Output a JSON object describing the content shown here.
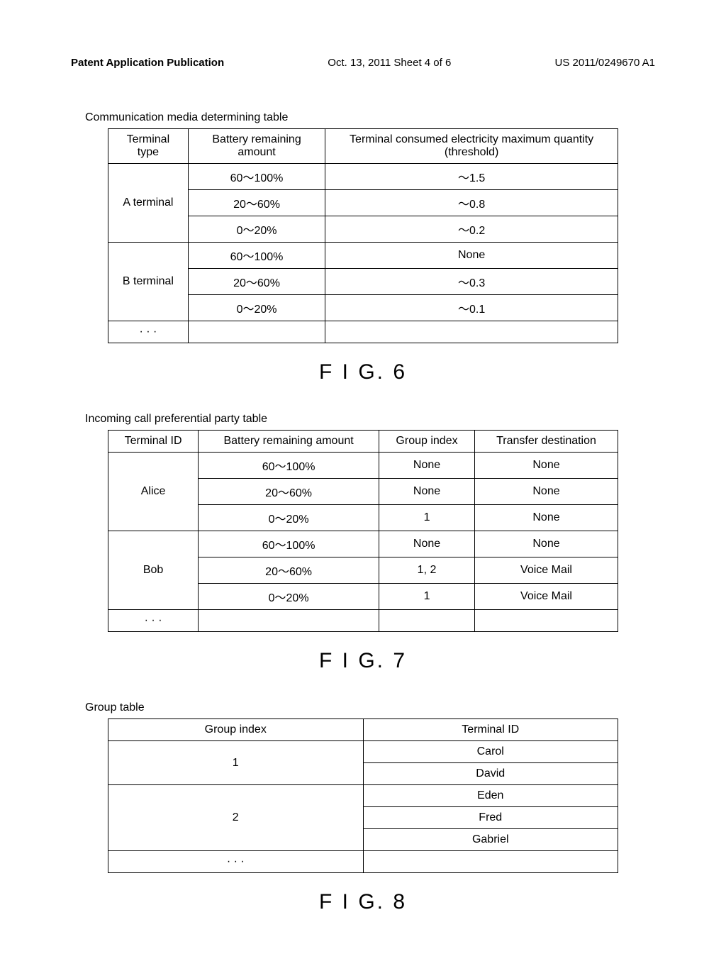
{
  "header": {
    "left": "Patent Application Publication",
    "center": "Oct. 13, 2011  Sheet 4 of 6",
    "right": "US 2011/0249670 A1"
  },
  "fig6": {
    "caption": "Communication media determining table",
    "label": "F I G. 6",
    "columns": [
      "Terminal type",
      "Battery remaining amount",
      "Terminal consumed electricity maximum quantity (threshold)"
    ],
    "groups": [
      {
        "terminal": "A terminal",
        "rows": [
          {
            "battery": "60～100%",
            "threshold": "～1.5"
          },
          {
            "battery": "20～60%",
            "threshold": "～0.8"
          },
          {
            "battery": "0～20%",
            "threshold": "～0.2"
          }
        ]
      },
      {
        "terminal": "B terminal",
        "rows": [
          {
            "battery": "60～100%",
            "threshold": "None"
          },
          {
            "battery": "20～60%",
            "threshold": "～0.3"
          },
          {
            "battery": "0～20%",
            "threshold": "～0.1"
          }
        ]
      },
      {
        "terminal": "· · ·",
        "rows": [
          {
            "battery": "",
            "threshold": ""
          }
        ]
      }
    ]
  },
  "fig7": {
    "caption": "Incoming call preferential party table",
    "label": "F I G. 7",
    "columns": [
      "Terminal ID",
      "Battery remaining amount",
      "Group index",
      "Transfer destination"
    ],
    "groups": [
      {
        "terminal": "Alice",
        "rows": [
          {
            "battery": "60～100%",
            "group": "None",
            "dest": "None"
          },
          {
            "battery": "20～60%",
            "group": "None",
            "dest": "None"
          },
          {
            "battery": "0～20%",
            "group": "1",
            "dest": "None"
          }
        ]
      },
      {
        "terminal": "Bob",
        "rows": [
          {
            "battery": "60～100%",
            "group": "None",
            "dest": "None"
          },
          {
            "battery": "20～60%",
            "group": "1, 2",
            "dest": "Voice Mail"
          },
          {
            "battery": "0～20%",
            "group": "1",
            "dest": "Voice Mail"
          }
        ]
      },
      {
        "terminal": "· · ·",
        "rows": [
          {
            "battery": "",
            "group": "",
            "dest": ""
          }
        ]
      }
    ]
  },
  "fig8": {
    "caption": "Group table",
    "label": "F I G. 8",
    "columns": [
      "Group index",
      "Terminal ID"
    ],
    "groups": [
      {
        "index": "1",
        "members": [
          "Carol",
          "David"
        ]
      },
      {
        "index": "2",
        "members": [
          "Eden",
          "Fred",
          "Gabriel"
        ]
      },
      {
        "index": "· · ·",
        "members": [
          ""
        ]
      }
    ]
  }
}
